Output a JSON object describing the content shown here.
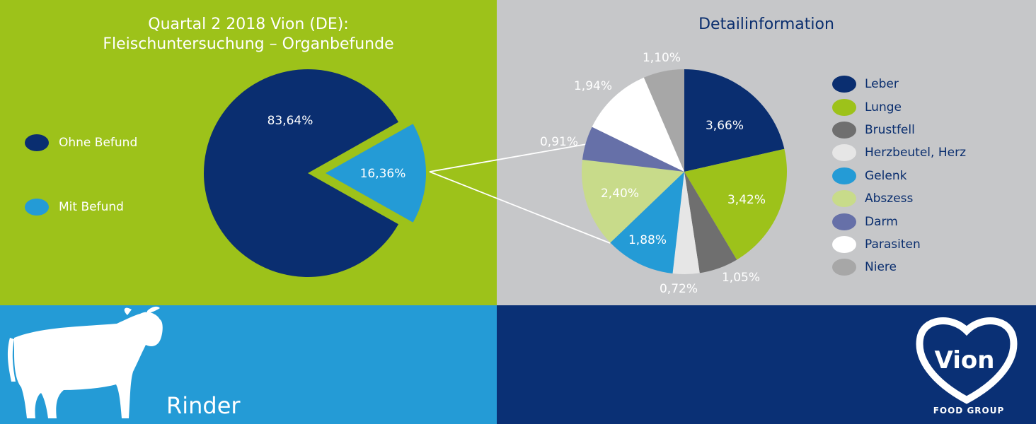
{
  "chart_data": [
    {
      "type": "pie",
      "title": "Quartal 2 2018 Vion (DE):",
      "subtitle": "Fleischuntersuchung – Organbefunde",
      "labels": [
        "Ohne Befund",
        "Mit Befund"
      ],
      "values": [
        83.64,
        16.36
      ],
      "value_labels": [
        "83,64%",
        "16,36%"
      ],
      "colors": [
        "#0a2e70",
        "#249bd6"
      ],
      "exploded_slice": "Mit Befund",
      "legend": "left"
    },
    {
      "type": "pie",
      "title": "Detailinformation",
      "labels": [
        "Leber",
        "Lunge",
        "Brustfell",
        "Herzbeutel, Herz",
        "Gelenk",
        "Abszess",
        "Darm",
        "Parasiten",
        "Niere"
      ],
      "values": [
        3.66,
        3.42,
        1.05,
        0.72,
        1.88,
        2.4,
        0.91,
        1.94,
        1.1
      ],
      "value_labels": [
        "3,66%",
        "3,42%",
        "1,05%",
        "0,72%",
        "1,88%",
        "2,40%",
        "0,91%",
        "1,94%",
        "1,10%"
      ],
      "colors": [
        "#0a2e70",
        "#9dc21a",
        "#6f6f6f",
        "#e6e6e6",
        "#249bd6",
        "#c8db8a",
        "#6670a8",
        "#ffffff",
        "#a7a7a7"
      ],
      "legend": "right"
    }
  ],
  "left_legend": [
    {
      "label": "Ohne Befund",
      "color": "#0a2e70"
    },
    {
      "label": "Mit Befund",
      "color": "#249bd6"
    }
  ],
  "footer": {
    "animal_label": "Rinder",
    "brand_name": "Vion",
    "brand_sub": "FOOD GROUP"
  }
}
